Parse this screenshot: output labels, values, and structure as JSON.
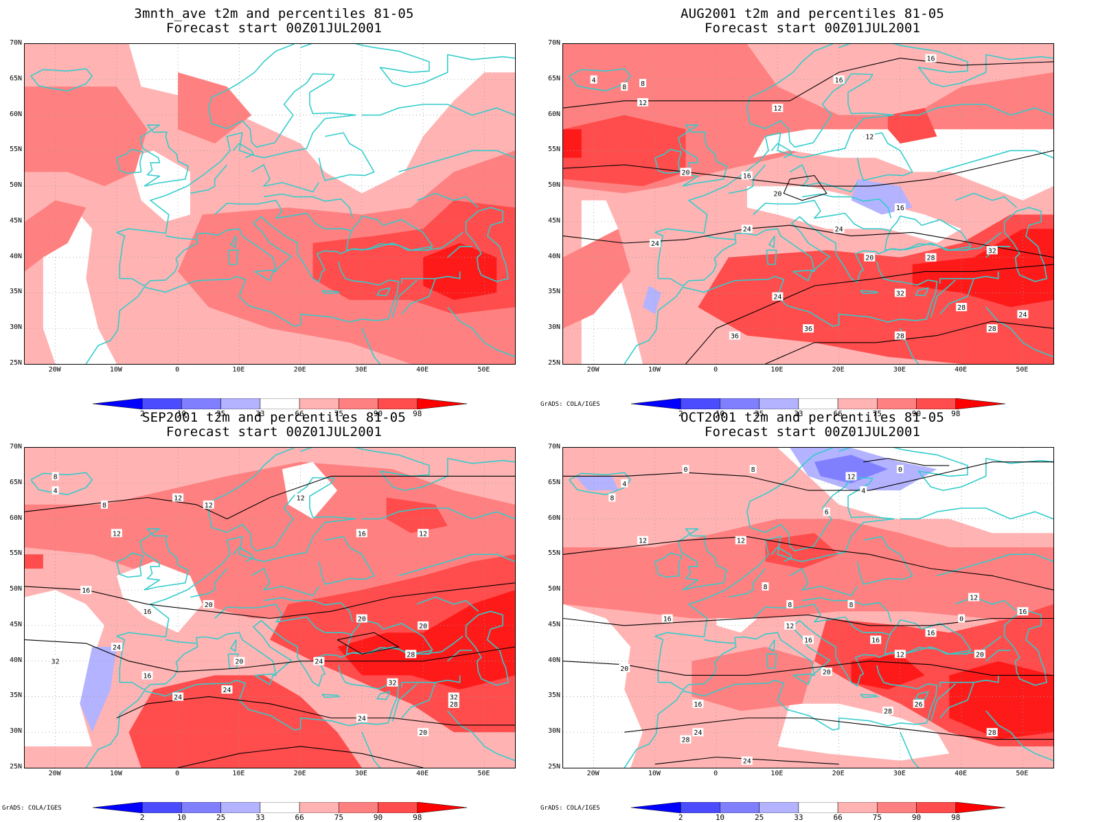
{
  "panels": [
    {
      "title": "3mnth_ave t2m and percentiles 81-05",
      "subtitle": "Forecast start 00Z01JUL2001",
      "variant": 0,
      "credit": ""
    },
    {
      "title": "AUG2001 t2m and percentiles 81-05",
      "subtitle": "Forecast start 00Z01JUL2001",
      "variant": 1,
      "credit": "GrADS: COLA/IGES"
    },
    {
      "title": "SEP2001 t2m and percentiles 81-05",
      "subtitle": "Forecast start 00Z01JUL2001",
      "variant": 2,
      "credit": "GrADS: COLA/IGES"
    },
    {
      "title": "OCT2001 t2m and percentiles 81-05",
      "subtitle": "Forecast start 00Z01JUL2001",
      "variant": 3,
      "credit": "GrADS: COLA/IGES"
    }
  ],
  "lat_labels": [
    "70N",
    "65N",
    "60N",
    "55N",
    "50N",
    "45N",
    "40N",
    "35N",
    "30N",
    "25N"
  ],
  "lon_labels": [
    "20W",
    "10W",
    "0",
    "10E",
    "20E",
    "30E",
    "40E",
    "50E"
  ],
  "colorbar": {
    "labels": [
      "2",
      "10",
      "25",
      "33",
      "66",
      "75",
      "90",
      "98"
    ],
    "colors": [
      "#0000ff",
      "#4c4cff",
      "#8080ff",
      "#b3b3ff",
      "#ffffff",
      "#ffb3b3",
      "#ff8080",
      "#ff4c4c",
      "#ff0000"
    ]
  },
  "shading_colors": {
    "light_red": "#ffb3b3",
    "mid_red": "#ff8080",
    "dark_red": "#ff4c4c",
    "deep_red": "#ff1a1a",
    "light_blue": "#b3b3ff",
    "mid_blue": "#8080ff",
    "deep_blue": "#4c4cff"
  },
  "coastline_color": "#33cccc",
  "contour_labels": {
    "p1": [
      "12",
      "8",
      "12",
      "16",
      "16",
      "12",
      "16",
      "20",
      "16",
      "20",
      "24",
      "24",
      "24",
      "20",
      "28",
      "32",
      "24",
      "32",
      "36",
      "36",
      "28",
      "28",
      "24",
      "28",
      "4",
      "8"
    ],
    "p2": [
      "12",
      "8",
      "12",
      "12",
      "12",
      "16",
      "12",
      "16",
      "16",
      "20",
      "20",
      "20",
      "24",
      "16",
      "20",
      "24",
      "28",
      "32",
      "32",
      "24",
      "24",
      "28",
      "32",
      "24",
      "20",
      "4",
      "8"
    ],
    "p3": [
      "0",
      "4",
      "8",
      "8",
      "4",
      "0",
      "6",
      "12",
      "12",
      "8",
      "8",
      "8",
      "16",
      "12",
      "16",
      "16",
      "12",
      "16",
      "20",
      "20",
      "16",
      "20",
      "24",
      "28",
      "24",
      "28",
      "26",
      "28",
      "12",
      "12",
      "16",
      "0"
    ]
  }
}
